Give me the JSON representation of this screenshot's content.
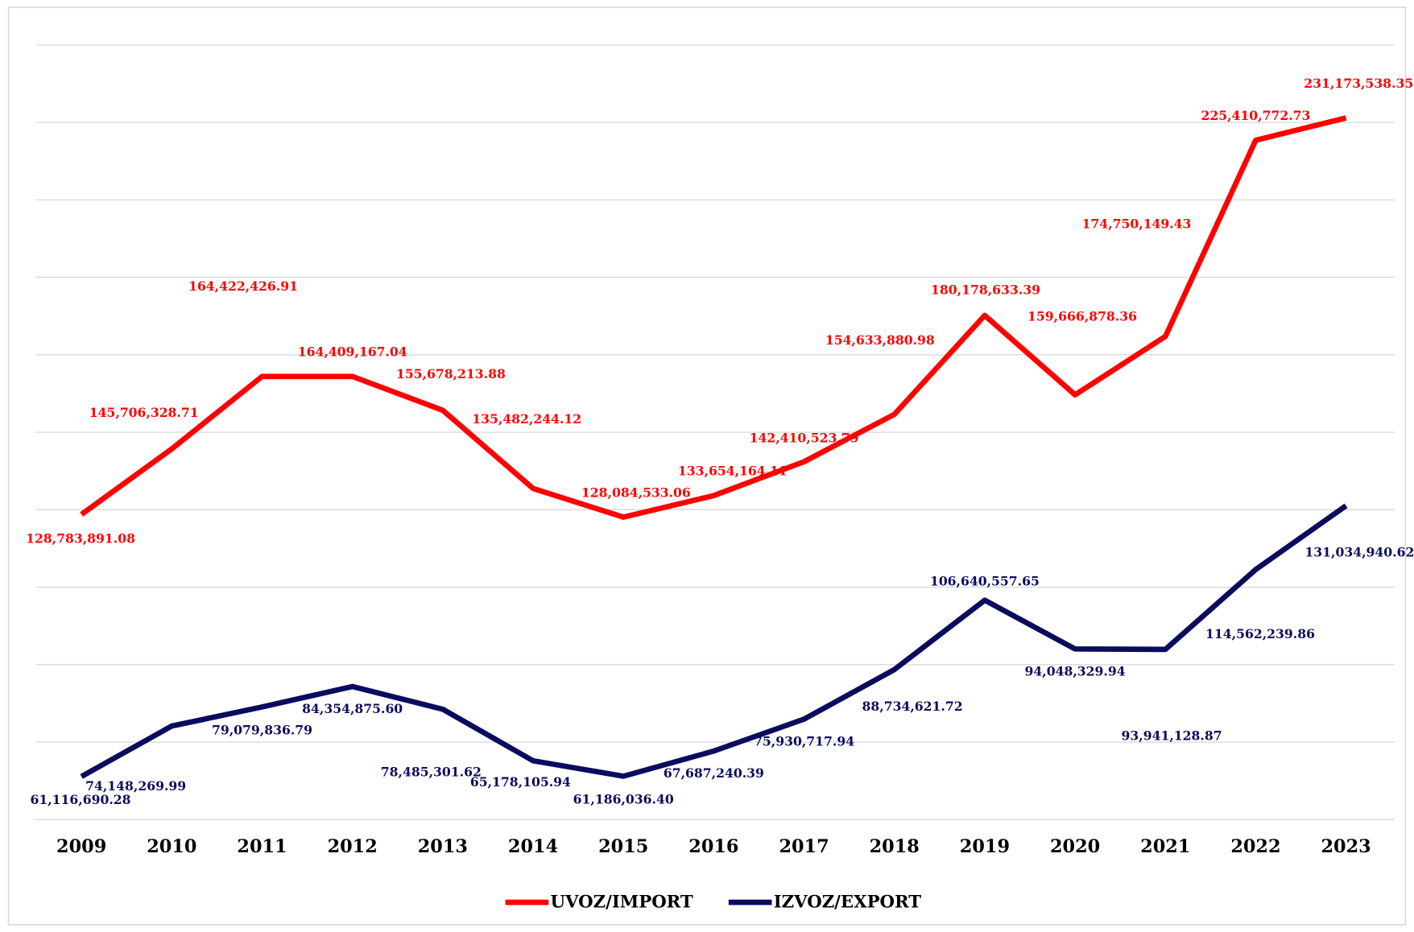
{
  "chart_data": {
    "type": "line",
    "categories": [
      "2009",
      "2010",
      "2011",
      "2012",
      "2013",
      "2014",
      "2015",
      "2016",
      "2017",
      "2018",
      "2019",
      "2020",
      "2021",
      "2022",
      "2023"
    ],
    "ylim": [
      50000000,
      250000000
    ],
    "yticks": [
      50000000,
      70000000,
      90000000,
      110000000,
      130000000,
      150000000,
      170000000,
      190000000,
      210000000,
      230000000,
      250000000
    ],
    "grid": true,
    "legend": "bottom",
    "series": [
      {
        "name": "UVOZ/IMPORT",
        "color": "#ff0000",
        "values": [
          128783891.08,
          145706328.71,
          164422426.91,
          164409167.04,
          155678213.88,
          135482244.12,
          128084533.06,
          133654164.11,
          142410523.79,
          154633880.98,
          180178633.39,
          159666878.36,
          174750149.43,
          225410772.73,
          231173538.35
        ],
        "value_labels": [
          "128,783,891.08",
          "145,706,328.71",
          "164,422,426.91",
          "164,409,167.04",
          "155,678,213.88",
          "135,482,244.12",
          "128,084,533.06",
          "133,654,164.11",
          "142,410,523.79",
          "154,633,880.98",
          "180,178,633.39",
          "159,666,878.36",
          "174,750,149.43",
          "225,410,772.73",
          "231,173,538.35"
        ]
      },
      {
        "name": "IZVOZ/EXPORT",
        "color": "#0b0b5e",
        "values": [
          61116690.28,
          74148269.99,
          79079836.79,
          84354875.6,
          78485301.62,
          65178105.94,
          61186036.4,
          67687240.39,
          75930717.94,
          88734621.72,
          106640557.65,
          94048329.94,
          93941128.87,
          114562239.86,
          131034940.62
        ],
        "value_labels": [
          "61,116,690.28",
          "74,148,269.99",
          "79,079,836.79",
          "84,354,875.60",
          "78,485,301.62",
          "65,178,105.94",
          "61,186,036.40",
          "67,687,240.39",
          "75,930,717.94",
          "88,734,621.72",
          "106,640,557.65",
          "94,048,329.94",
          "93,941,128.87",
          "114,562,239.86",
          "131,034,940.62"
        ]
      }
    ]
  }
}
